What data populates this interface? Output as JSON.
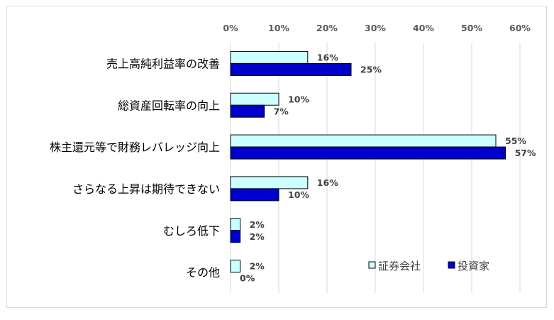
{
  "chart_data": {
    "type": "bar",
    "orientation": "horizontal",
    "categories": [
      "売上高純利益率の改善",
      "総資産回転率の向上",
      "株主還元等で財務レバレッジ向上",
      "さらなる上昇は期待できない",
      "むしろ低下",
      "その他"
    ],
    "series": [
      {
        "name": "証券会社",
        "values": [
          16,
          10,
          55,
          16,
          2,
          2
        ],
        "color": "#ccffff"
      },
      {
        "name": "投資家",
        "values": [
          25,
          7,
          57,
          10,
          2,
          0
        ],
        "color": "#0000cc"
      }
    ],
    "xlim": [
      0,
      60
    ],
    "xticks": [
      0,
      10,
      20,
      30,
      40,
      50,
      60
    ],
    "tick_suffix": "%",
    "axis_position": "top",
    "grid": true,
    "gridline_color": "#d9d9d9",
    "bar_border_color": "#000000",
    "legend_position": "bottom-right",
    "title": "",
    "xlabel": "",
    "ylabel": ""
  }
}
